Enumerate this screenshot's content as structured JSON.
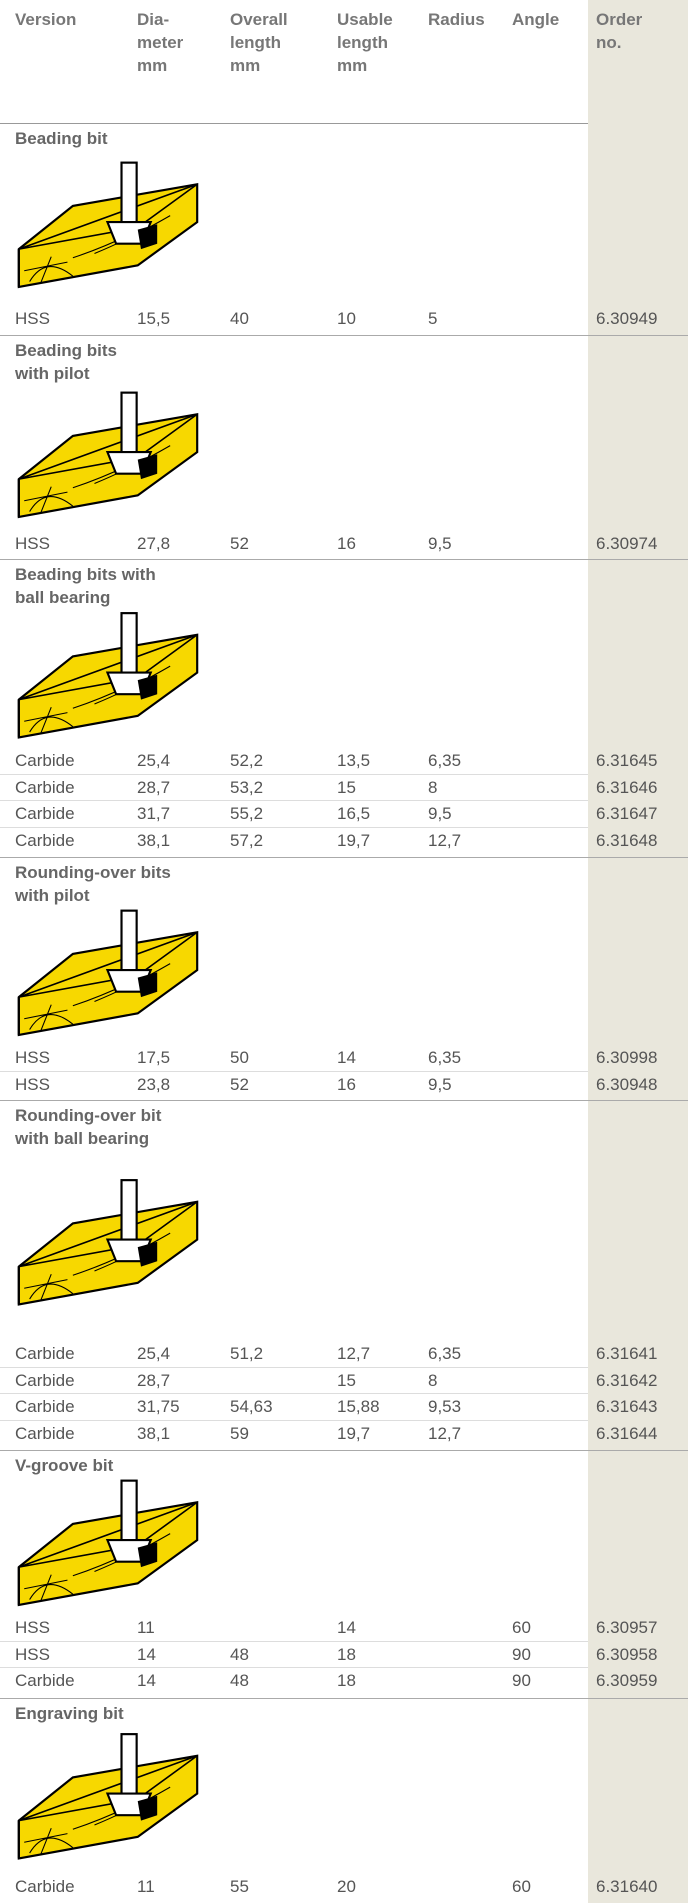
{
  "header": [
    "Version",
    [
      "Dia-",
      "meter",
      "mm"
    ],
    [
      "Overall",
      "length",
      "mm"
    ],
    [
      "Usable",
      "length",
      "mm"
    ],
    "Radius",
    "Angle",
    [
      "Order",
      "no."
    ]
  ],
  "sections": [
    {
      "title": [
        "Beading bit"
      ],
      "rows": [
        [
          "HSS",
          "15,5",
          "40",
          "10",
          "5",
          null,
          "6.30949"
        ]
      ]
    },
    {
      "title": [
        "Beading bits",
        "with pilot"
      ],
      "rows": [
        [
          "HSS",
          "27,8",
          "52",
          "16",
          "9,5",
          null,
          "6.30974"
        ]
      ]
    },
    {
      "title": [
        "Beading bits with",
        "ball bearing"
      ],
      "rows": [
        [
          "Carbide",
          "25,4",
          "52,2",
          "13,5",
          "6,35",
          null,
          "6.31645"
        ],
        [
          "Carbide",
          "28,7",
          "53,2",
          "15",
          "8",
          null,
          "6.31646"
        ],
        [
          "Carbide",
          "31,7",
          "55,2",
          "16,5",
          "9,5",
          null,
          "6.31647"
        ],
        [
          "Carbide",
          "38,1",
          "57,2",
          "19,7",
          "12,7",
          null,
          "6.31648"
        ]
      ]
    },
    {
      "title": [
        "Rounding-over bits",
        "with pilot"
      ],
      "rows": [
        [
          "HSS",
          "17,5",
          "50",
          "14",
          "6,35",
          null,
          "6.30998"
        ],
        [
          "HSS",
          "23,8",
          "52",
          "16",
          "9,5",
          null,
          "6.30948"
        ]
      ]
    },
    {
      "title": [
        "Rounding-over bit",
        "with ball bearing"
      ],
      "rows": [
        [
          "Carbide",
          "25,4",
          "51,2",
          "12,7",
          "6,35",
          null,
          "6.31641"
        ],
        [
          "Carbide",
          "28,7",
          null,
          "15",
          "8",
          null,
          "6.31642"
        ],
        [
          "Carbide",
          "31,75",
          "54,63",
          "15,88",
          "9,53",
          null,
          "6.31643"
        ],
        [
          "Carbide",
          "38,1",
          "59",
          "19,7",
          "12,7",
          null,
          "6.31644"
        ]
      ]
    },
    {
      "title": [
        "V-groove bit"
      ],
      "rows": [
        [
          "HSS",
          "11",
          null,
          "14",
          null,
          "60",
          "6.30957"
        ],
        [
          "HSS",
          "14",
          "48",
          "18",
          null,
          "90",
          "6.30958"
        ],
        [
          "Carbide",
          "14",
          "48",
          "18",
          null,
          "90",
          "6.30959"
        ]
      ]
    },
    {
      "title": [
        "Engraving bit"
      ],
      "rows": [
        [
          "Carbide",
          "11",
          "55",
          "20",
          null,
          "60",
          "6.31640"
        ]
      ]
    }
  ]
}
